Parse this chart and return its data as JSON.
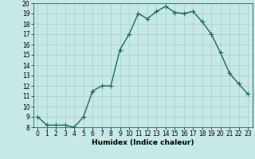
{
  "xlabel": "Humidex (Indice chaleur)",
  "x": [
    0,
    1,
    2,
    3,
    4,
    5,
    6,
    7,
    8,
    9,
    10,
    11,
    12,
    13,
    14,
    15,
    16,
    17,
    18,
    19,
    20,
    21,
    22,
    23
  ],
  "y": [
    9,
    8.2,
    8.2,
    8.2,
    8.0,
    9.0,
    11.5,
    12.0,
    12.0,
    15.5,
    17.0,
    19.0,
    18.5,
    19.2,
    19.7,
    19.1,
    19.0,
    19.2,
    18.2,
    17.0,
    15.2,
    13.2,
    12.2,
    11.2
  ],
  "line_color": "#1a6b5a",
  "marker_color": "#1a6b5a",
  "bg_color": "#c6e8e6",
  "grid_color": "#a8ceca",
  "ylim": [
    8,
    20
  ],
  "xlim": [
    -0.5,
    23.5
  ],
  "yticks": [
    8,
    9,
    10,
    11,
    12,
    13,
    14,
    15,
    16,
    17,
    18,
    19,
    20
  ],
  "xticks": [
    0,
    1,
    2,
    3,
    4,
    5,
    6,
    7,
    8,
    9,
    10,
    11,
    12,
    13,
    14,
    15,
    16,
    17,
    18,
    19,
    20,
    21,
    22,
    23
  ],
  "tick_fontsize": 5.5,
  "label_fontsize": 6.5,
  "marker_size": 2.5,
  "line_width": 1.0
}
